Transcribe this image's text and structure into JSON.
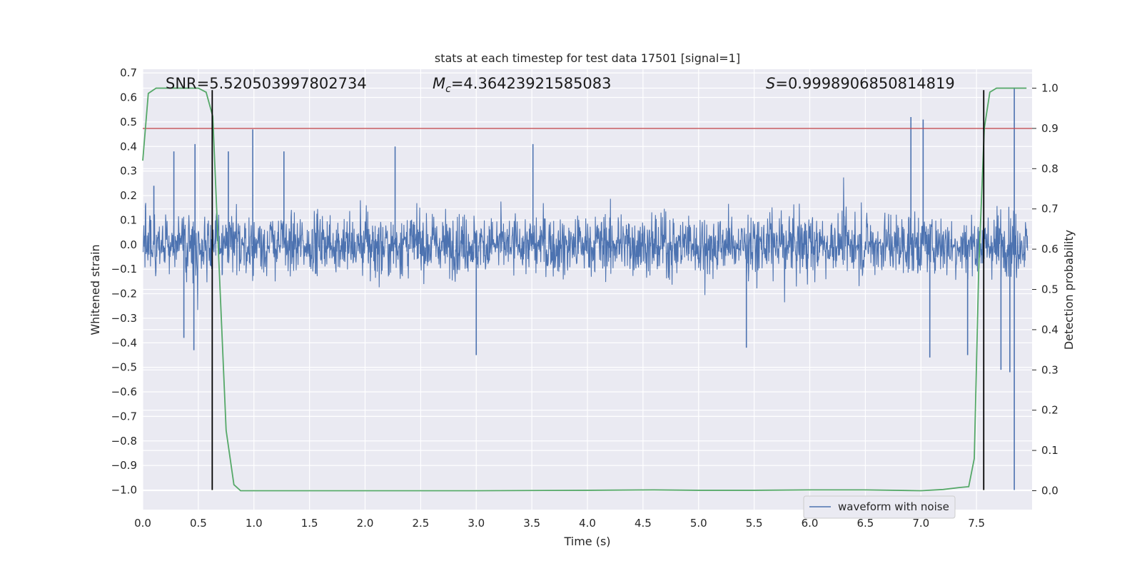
{
  "chart_data": {
    "type": "line",
    "title": "stats at each timestep for test data 17501 [signal=1]",
    "xlabel": "Time (s)",
    "ylabel": "Whitened strain",
    "y2label": "Detection probability",
    "xlim": [
      0.0,
      8.0
    ],
    "ylim": [
      -1.08,
      0.715
    ],
    "y2lim": [
      -0.047,
      1.047
    ],
    "xticks": [
      "0.0",
      "0.5",
      "1.0",
      "1.5",
      "2.0",
      "2.5",
      "3.0",
      "3.5",
      "4.0",
      "4.5",
      "5.0",
      "5.5",
      "6.0",
      "6.5",
      "7.0",
      "7.5"
    ],
    "yticks": [
      "0.7",
      "0.6",
      "0.5",
      "0.4",
      "0.3",
      "0.2",
      "0.1",
      "0.0",
      "−0.1",
      "−0.2",
      "−0.3",
      "−0.4",
      "−0.5",
      "−0.6",
      "−0.7",
      "−0.8",
      "−0.9",
      "−1.0"
    ],
    "y2ticks": [
      "1.0",
      "0.9",
      "0.8",
      "0.7",
      "0.6",
      "0.5",
      "0.4",
      "0.3",
      "0.2",
      "0.1",
      "0.0"
    ],
    "annotations": {
      "snr": "SNR=5.520503997802734",
      "mc": "=4.36423921585083",
      "s": "=0.9998906850814819",
      "mc_symbol": "M",
      "mc_subscript": "c",
      "s_symbol": "S"
    },
    "legend": {
      "label": "waveform with noise",
      "location": "lower-right"
    },
    "series": [
      {
        "name": "waveform with noise",
        "axis": "left",
        "color": "#4c72b0",
        "description": "noisy whitened strain, mostly within ±0.3",
        "typical_amplitude": 0.14,
        "spikes": [
          {
            "t": 0.1,
            "v": 0.24
          },
          {
            "t": 0.28,
            "v": 0.38
          },
          {
            "t": 0.37,
            "v": -0.38
          },
          {
            "t": 0.47,
            "v": 0.41
          },
          {
            "t": 0.46,
            "v": -0.43
          },
          {
            "t": 0.77,
            "v": 0.38
          },
          {
            "t": 0.99,
            "v": 0.47
          },
          {
            "t": 1.27,
            "v": 0.38
          },
          {
            "t": 2.27,
            "v": 0.4
          },
          {
            "t": 3.0,
            "v": -0.45
          },
          {
            "t": 3.51,
            "v": 0.41
          },
          {
            "t": 5.43,
            "v": -0.42
          },
          {
            "t": 6.91,
            "v": 0.52
          },
          {
            "t": 7.02,
            "v": 0.51
          },
          {
            "t": 7.08,
            "v": -0.46
          },
          {
            "t": 7.42,
            "v": -0.45
          },
          {
            "t": 7.72,
            "v": -0.51
          },
          {
            "t": 7.8,
            "v": -0.52
          },
          {
            "t": 7.84,
            "v": 0.64
          },
          {
            "t": 7.84,
            "v": -1.0
          }
        ]
      },
      {
        "name": "detection probability",
        "axis": "right",
        "color": "#55a868",
        "x": [
          0.0,
          0.05,
          0.12,
          0.3,
          0.5,
          0.57,
          0.63,
          0.68,
          0.75,
          0.82,
          0.88,
          1.0,
          2.0,
          3.0,
          4.0,
          4.6,
          5.0,
          5.5,
          6.0,
          6.5,
          7.0,
          7.2,
          7.35,
          7.43,
          7.48,
          7.52,
          7.57,
          7.62,
          7.68,
          7.8,
          7.95
        ],
        "y": [
          0.82,
          0.987,
          1.0,
          1.0,
          1.0,
          0.99,
          0.93,
          0.6,
          0.15,
          0.015,
          0.0,
          0.0,
          0.0,
          0.0,
          0.001,
          0.002,
          0.001,
          0.001,
          0.002,
          0.002,
          0.0,
          0.003,
          0.008,
          0.01,
          0.08,
          0.55,
          0.9,
          0.99,
          1.0,
          1.0,
          1.0
        ]
      }
    ],
    "threshold": {
      "axis": "right",
      "value": 0.9,
      "color": "#c44e52"
    },
    "vlines": [
      {
        "x": 0.625,
        "ymin": -1.0,
        "ymax": 0.63,
        "color": "#000000"
      },
      {
        "x": 7.565,
        "ymin": -1.0,
        "ymax": 0.63,
        "color": "#000000"
      }
    ]
  }
}
